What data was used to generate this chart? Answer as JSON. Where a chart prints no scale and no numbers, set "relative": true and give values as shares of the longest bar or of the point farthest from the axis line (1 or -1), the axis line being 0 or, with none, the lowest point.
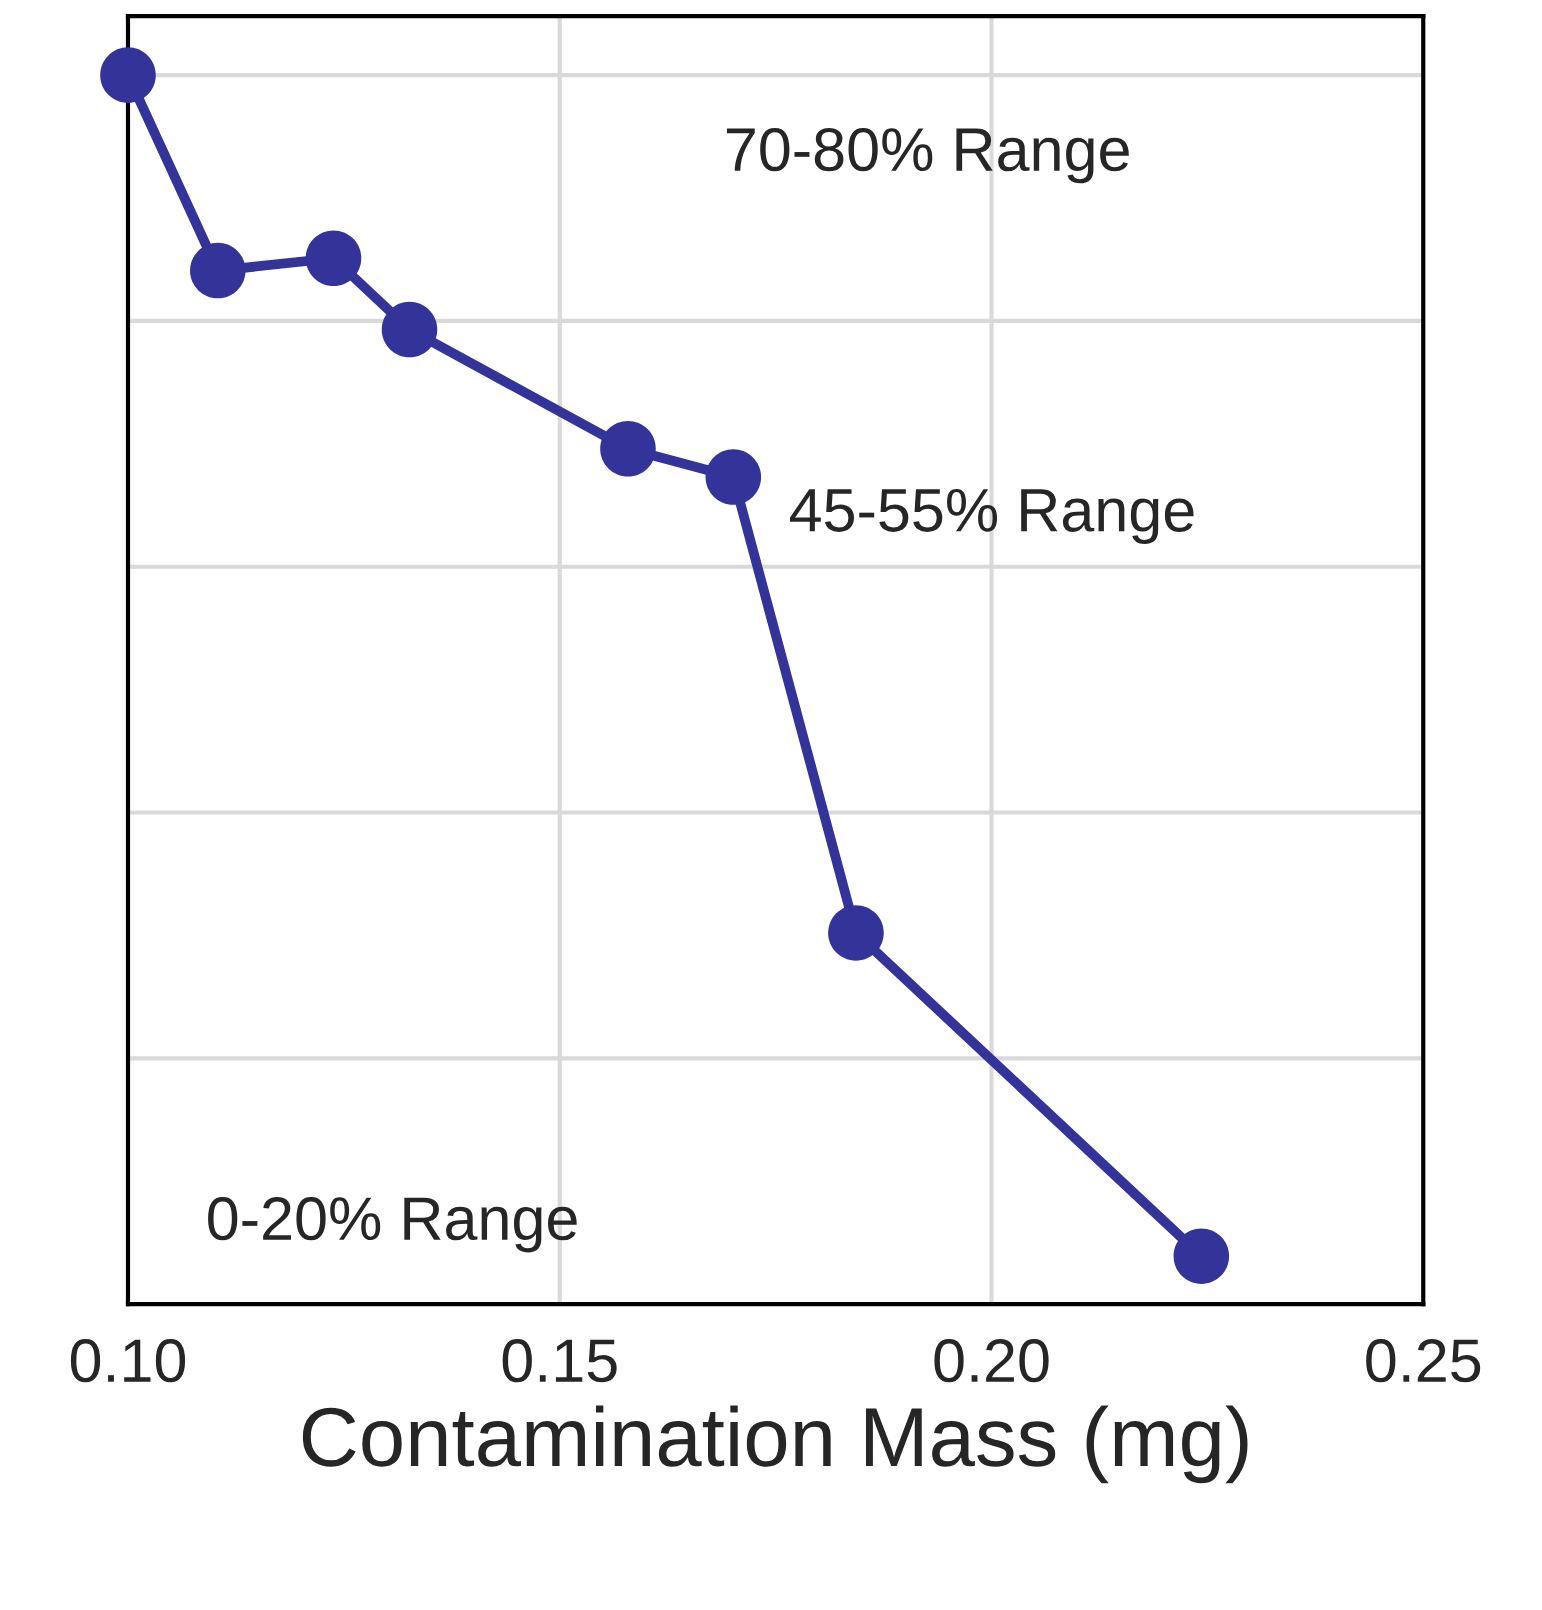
{
  "chart_data": {
    "type": "line",
    "xlabel": "Contamination Mass (mg)",
    "x": [
      0.1,
      0.1104,
      0.1238,
      0.1326,
      0.1579,
      0.1701,
      0.1843,
      0.2243
    ],
    "series": [
      {
        "color": "#333399",
        "values": [
          1,
          0.841,
          0.851,
          0.793,
          0.696,
          0.673,
          0.302,
          0.039
        ]
      }
    ],
    "relative": true,
    "xlim": [
      0.1,
      0.25
    ],
    "xticks": [
      {
        "value": 0.1,
        "label": "0.10"
      },
      {
        "value": 0.15,
        "label": "0.15"
      },
      {
        "value": 0.2,
        "label": "0.20"
      },
      {
        "value": 0.25,
        "label": "0.25"
      }
    ],
    "grid": true,
    "marker": "circle",
    "line_style": "solid",
    "annotations": [
      "70-80% Range",
      "45-55% Range",
      "0-20% Range"
    ]
  }
}
